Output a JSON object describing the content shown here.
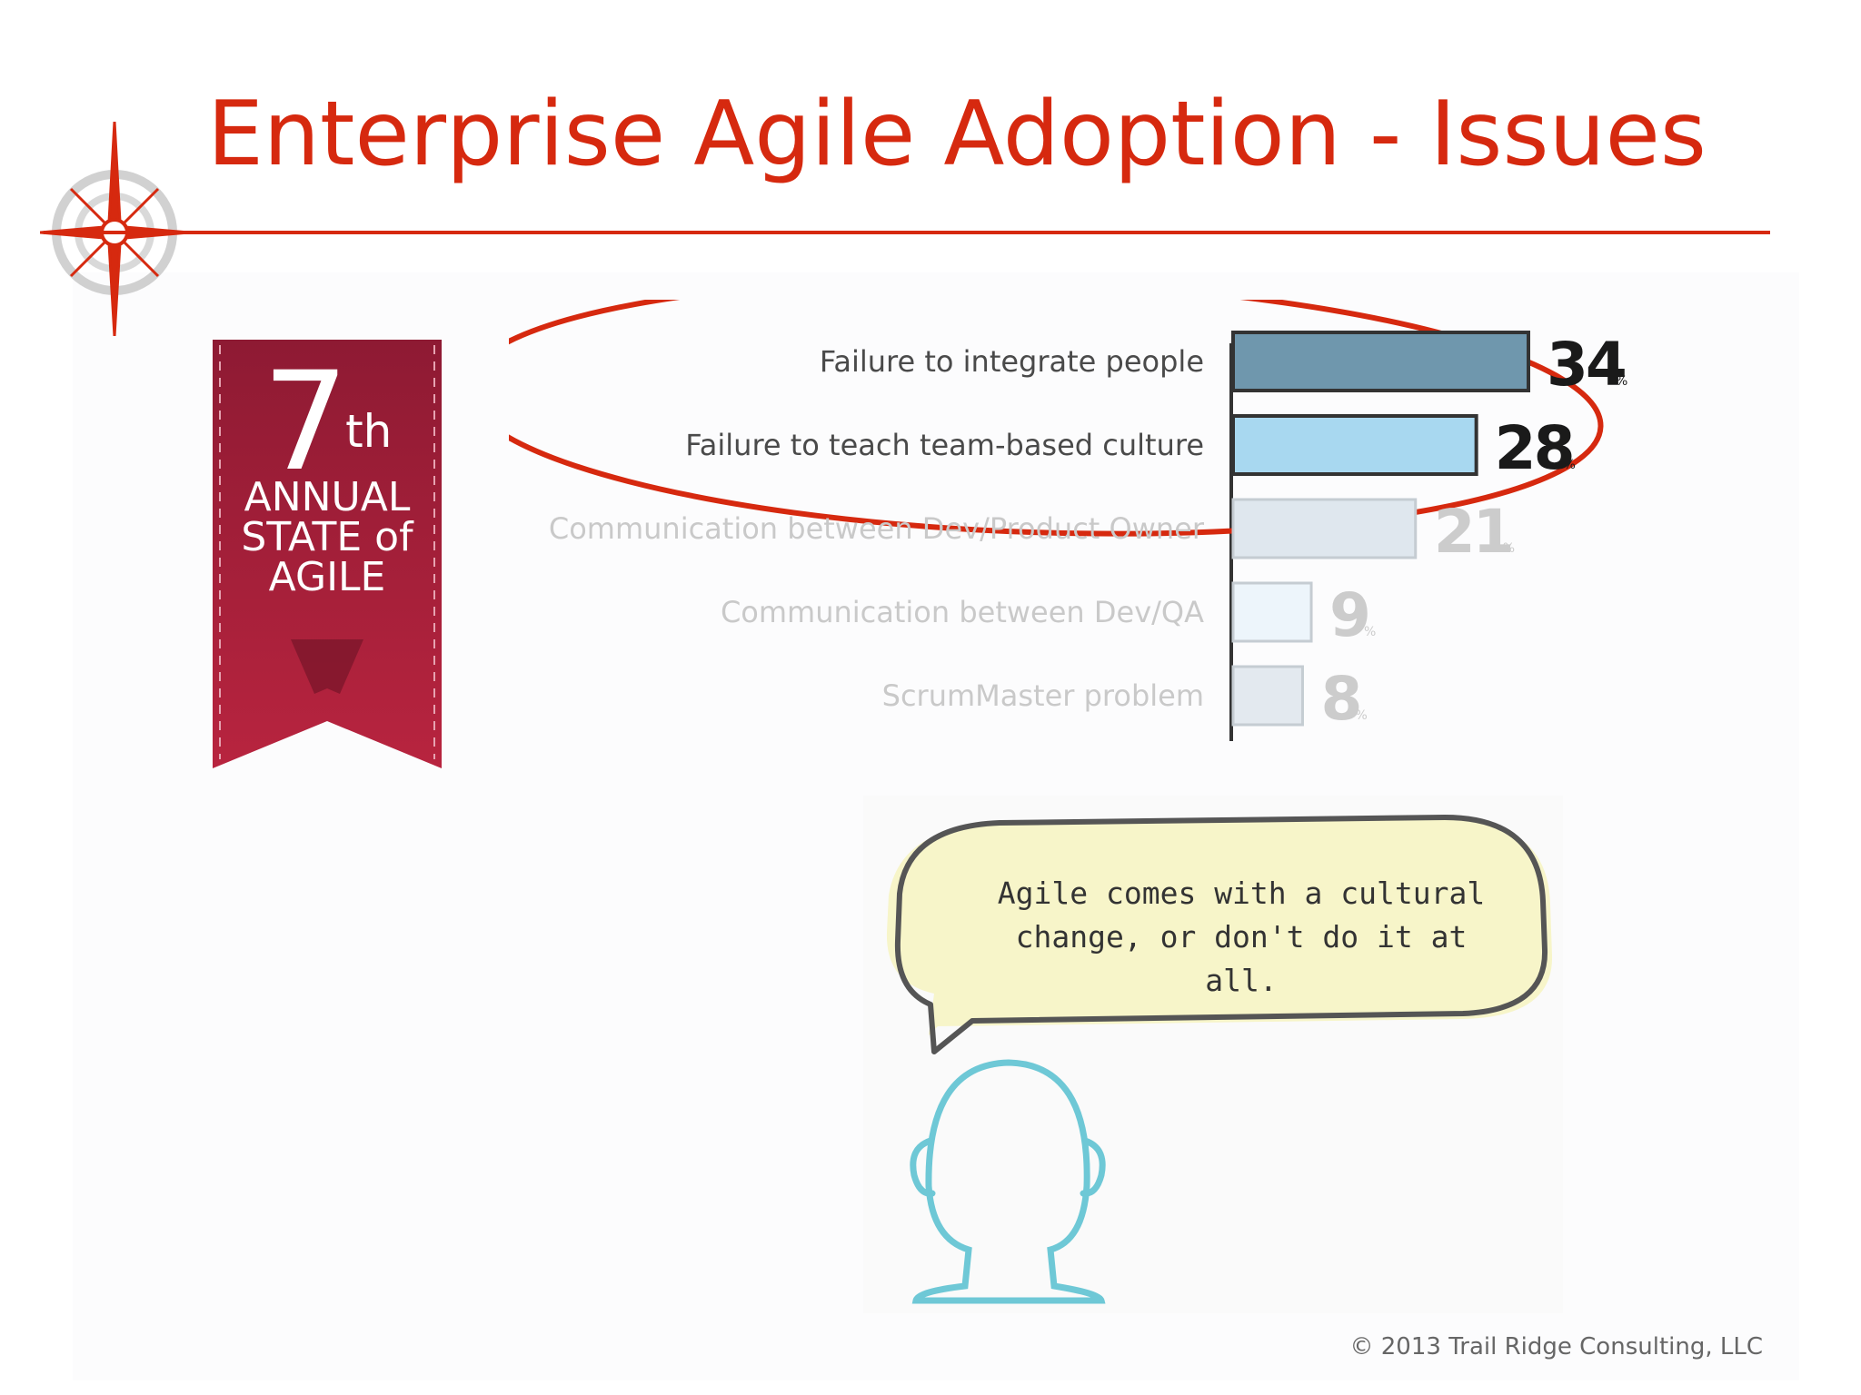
{
  "slide": {
    "title": "Enterprise Agile Adoption - Issues",
    "footer": "© 2013 Trail Ridge Consulting, LLC",
    "colors": {
      "accent": "#d6290f",
      "ribbon": "#a41f3a"
    }
  },
  "badge": {
    "number": "7",
    "suffix": "th",
    "line1": "ANNUAL",
    "line2": "STATE of",
    "line3": "AGILE"
  },
  "chart_data": {
    "type": "bar",
    "orientation": "horizontal",
    "categories": [
      "Failure to integrate people",
      "Failure to teach team-based culture",
      "Communication between Dev/Product Owner",
      "Communication between Dev/QA",
      "ScrumMaster problem"
    ],
    "values": [
      34,
      28,
      21,
      9,
      8
    ],
    "unit": "%",
    "highlighted": [
      0,
      1
    ],
    "bar_colors": [
      "#6f97ad",
      "#a8d8f0",
      "#dfe7ee",
      "#edf5fb",
      "#e3e9ef"
    ],
    "xlim": [
      0,
      34
    ],
    "grid": false,
    "legend": "none"
  },
  "callout": {
    "text": "Agile comes with a cultural\nchange, or don't do it at all."
  }
}
